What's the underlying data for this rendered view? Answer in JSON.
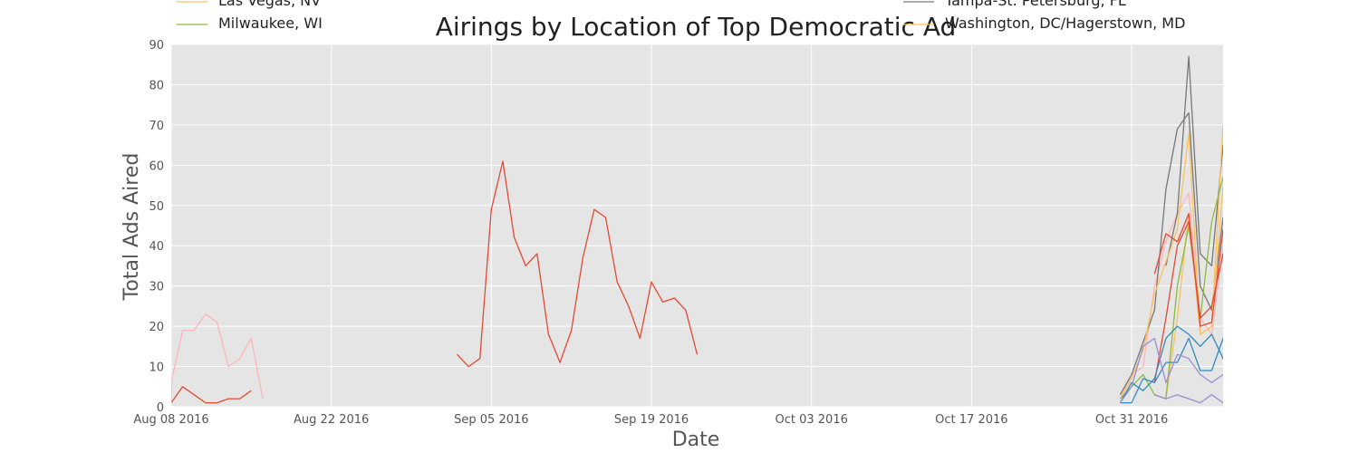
{
  "chart_data": {
    "type": "line",
    "title": "Airings by Location of Top Democratic Ad",
    "xlabel": "Date",
    "ylabel": "Total Ads Aired",
    "xlim": [
      "2016-08-08",
      "2016-11-08"
    ],
    "ylim": [
      0,
      90
    ],
    "x_ticks": [
      "2016-08-08",
      "2016-08-22",
      "2016-09-05",
      "2016-09-19",
      "2016-10-03",
      "2016-10-17",
      "2016-10-31"
    ],
    "x_tick_labels": [
      "Aug 08 2016",
      "Aug 22 2016",
      "Sep 05 2016",
      "Sep 19 2016",
      "Oct 03 2016",
      "Oct 17 2016",
      "Oct 31 2016"
    ],
    "y_ticks": [
      0,
      10,
      20,
      30,
      40,
      50,
      60,
      70,
      80,
      90
    ],
    "grid": true,
    "background": "#e5e5e5",
    "legend": [
      {
        "label": "Las Vegas, NV",
        "color": "#fbc15e"
      },
      {
        "label": "Milwaukee, WI",
        "color": "#8eba42"
      },
      {
        "label": "Tampa-St. Petersburg, FL",
        "color": "#777777"
      },
      {
        "label": "Washington, DC/Hagerstown, MD",
        "color": "#fbc15e"
      }
    ],
    "series": [
      {
        "color": "#e24a33",
        "points": [
          [
            "2016-08-07",
            1
          ],
          [
            "2016-08-08",
            1
          ],
          [
            "2016-08-09",
            5
          ],
          [
            "2016-08-10",
            3
          ],
          [
            "2016-08-11",
            1
          ],
          [
            "2016-08-12",
            1
          ],
          [
            "2016-08-13",
            2
          ],
          [
            "2016-08-14",
            2
          ],
          [
            "2016-08-15",
            4
          ],
          [
            "2016-09-02",
            13
          ],
          [
            "2016-09-03",
            10
          ],
          [
            "2016-09-04",
            12
          ],
          [
            "2016-09-05",
            49
          ],
          [
            "2016-09-06",
            61
          ],
          [
            "2016-09-07",
            42
          ],
          [
            "2016-09-08",
            35
          ],
          [
            "2016-09-09",
            38
          ],
          [
            "2016-09-10",
            18
          ],
          [
            "2016-09-11",
            11
          ],
          [
            "2016-09-12",
            19
          ],
          [
            "2016-09-13",
            37
          ],
          [
            "2016-09-14",
            49
          ],
          [
            "2016-09-15",
            47
          ],
          [
            "2016-09-16",
            31
          ],
          [
            "2016-09-17",
            25
          ],
          [
            "2016-09-18",
            17
          ],
          [
            "2016-09-19",
            31
          ],
          [
            "2016-09-20",
            26
          ],
          [
            "2016-09-21",
            27
          ],
          [
            "2016-09-22",
            24
          ],
          [
            "2016-09-23",
            13
          ]
        ]
      },
      {
        "color": "#ffb5b8",
        "points": [
          [
            "2016-08-06",
            1
          ],
          [
            "2016-08-07",
            1
          ],
          [
            "2016-08-08",
            1
          ],
          [
            "2016-08-08",
            6
          ],
          [
            "2016-08-09",
            19
          ],
          [
            "2016-08-10",
            19
          ],
          [
            "2016-08-11",
            23
          ],
          [
            "2016-08-12",
            21
          ],
          [
            "2016-08-13",
            10
          ],
          [
            "2016-08-14",
            12
          ],
          [
            "2016-08-15",
            17
          ],
          [
            "2016-08-16",
            2
          ],
          [
            "2016-10-30",
            2
          ],
          [
            "2016-10-31",
            8
          ],
          [
            "2016-11-01",
            10
          ],
          [
            "2016-11-02",
            30
          ],
          [
            "2016-11-03",
            41
          ],
          [
            "2016-11-04",
            48
          ],
          [
            "2016-11-05",
            53
          ],
          [
            "2016-11-06",
            22
          ],
          [
            "2016-11-07",
            18
          ],
          [
            "2016-11-08",
            40
          ]
        ]
      },
      {
        "color": "#777777",
        "points": [
          [
            "2016-10-30",
            3
          ],
          [
            "2016-10-31",
            8
          ],
          [
            "2016-11-01",
            16
          ],
          [
            "2016-11-02",
            24
          ],
          [
            "2016-11-03",
            54
          ],
          [
            "2016-11-04",
            69
          ],
          [
            "2016-11-05",
            73
          ],
          [
            "2016-11-06",
            30
          ],
          [
            "2016-11-07",
            24
          ],
          [
            "2016-11-08",
            47
          ],
          [
            "2016-11-09",
            38
          ]
        ]
      },
      {
        "color": "#777777",
        "points": [
          [
            "2016-11-03",
            35
          ],
          [
            "2016-11-04",
            48
          ],
          [
            "2016-11-05",
            87
          ],
          [
            "2016-11-06",
            38
          ],
          [
            "2016-11-07",
            35
          ],
          [
            "2016-11-08",
            65
          ],
          [
            "2016-11-09",
            58
          ]
        ]
      },
      {
        "color": "#fbc15e",
        "points": [
          [
            "2016-10-30",
            2
          ],
          [
            "2016-10-31",
            7
          ],
          [
            "2016-11-01",
            14
          ],
          [
            "2016-11-02",
            28
          ],
          [
            "2016-11-03",
            36
          ],
          [
            "2016-11-04",
            44
          ],
          [
            "2016-11-05",
            68
          ],
          [
            "2016-11-06",
            18
          ],
          [
            "2016-11-07",
            20
          ],
          [
            "2016-11-08",
            70
          ],
          [
            "2016-11-09",
            36
          ]
        ]
      },
      {
        "color": "#fbc15e",
        "points": [
          [
            "2016-11-02",
            3
          ],
          [
            "2016-11-03",
            2
          ],
          [
            "2016-11-04",
            22
          ],
          [
            "2016-11-05",
            48
          ],
          [
            "2016-11-06",
            18
          ],
          [
            "2016-11-07",
            20
          ],
          [
            "2016-11-08",
            55
          ],
          [
            "2016-11-09",
            22
          ]
        ]
      },
      {
        "color": "#8eba42",
        "points": [
          [
            "2016-10-30",
            2
          ],
          [
            "2016-10-31",
            5
          ],
          [
            "2016-11-01",
            8
          ],
          [
            "2016-11-02",
            3
          ],
          [
            "2016-11-03",
            2
          ],
          [
            "2016-11-04",
            30
          ],
          [
            "2016-11-05",
            45
          ],
          [
            "2016-11-06",
            22
          ],
          [
            "2016-11-07",
            46
          ],
          [
            "2016-11-08",
            57
          ],
          [
            "2016-11-09",
            48
          ]
        ]
      },
      {
        "color": "#e24a33",
        "points": [
          [
            "2016-11-02",
            33
          ],
          [
            "2016-11-03",
            43
          ],
          [
            "2016-11-04",
            41
          ],
          [
            "2016-11-05",
            48
          ],
          [
            "2016-11-06",
            20
          ],
          [
            "2016-11-07",
            21
          ],
          [
            "2016-11-08",
            44
          ],
          [
            "2016-11-09",
            40
          ]
        ]
      },
      {
        "color": "#e24a33",
        "points": [
          [
            "2016-11-02",
            6
          ],
          [
            "2016-11-03",
            22
          ],
          [
            "2016-11-04",
            40
          ],
          [
            "2016-11-05",
            46
          ],
          [
            "2016-11-06",
            22
          ],
          [
            "2016-11-07",
            25
          ],
          [
            "2016-11-08",
            38
          ],
          [
            "2016-11-09",
            25
          ]
        ]
      },
      {
        "color": "#348abd",
        "points": [
          [
            "2016-10-30",
            1
          ],
          [
            "2016-10-31",
            6
          ],
          [
            "2016-11-01",
            4
          ],
          [
            "2016-11-02",
            7
          ],
          [
            "2016-11-03",
            17
          ],
          [
            "2016-11-04",
            20
          ],
          [
            "2016-11-05",
            18
          ],
          [
            "2016-11-06",
            15
          ],
          [
            "2016-11-07",
            18
          ],
          [
            "2016-11-08",
            12
          ],
          [
            "2016-11-09",
            6
          ]
        ]
      },
      {
        "color": "#348abd",
        "points": [
          [
            "2016-10-30",
            1
          ],
          [
            "2016-10-31",
            1
          ],
          [
            "2016-11-01",
            7
          ],
          [
            "2016-11-02",
            6
          ],
          [
            "2016-11-03",
            11
          ],
          [
            "2016-11-04",
            11
          ],
          [
            "2016-11-05",
            17
          ],
          [
            "2016-11-06",
            9
          ],
          [
            "2016-11-07",
            9
          ],
          [
            "2016-11-08",
            17
          ],
          [
            "2016-11-09",
            10
          ]
        ]
      },
      {
        "color": "#988ed5",
        "points": [
          [
            "2016-10-30",
            1
          ],
          [
            "2016-10-31",
            5
          ],
          [
            "2016-11-01",
            15
          ],
          [
            "2016-11-02",
            17
          ],
          [
            "2016-11-03",
            6
          ],
          [
            "2016-11-04",
            13
          ],
          [
            "2016-11-05",
            12
          ],
          [
            "2016-11-06",
            8
          ],
          [
            "2016-11-07",
            6
          ],
          [
            "2016-11-08",
            8
          ],
          [
            "2016-11-09",
            8
          ]
        ]
      },
      {
        "color": "#988ed5",
        "points": [
          [
            "2016-11-02",
            3
          ],
          [
            "2016-11-03",
            2
          ],
          [
            "2016-11-04",
            3
          ],
          [
            "2016-11-05",
            2
          ],
          [
            "2016-11-06",
            1
          ],
          [
            "2016-11-07",
            3
          ],
          [
            "2016-11-08",
            1
          ],
          [
            "2016-11-09",
            3
          ]
        ]
      }
    ]
  }
}
